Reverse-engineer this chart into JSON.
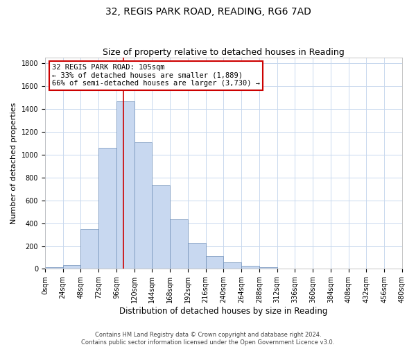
{
  "title": "32, REGIS PARK ROAD, READING, RG6 7AD",
  "subtitle": "Size of property relative to detached houses in Reading",
  "xlabel": "Distribution of detached houses by size in Reading",
  "ylabel": "Number of detached properties",
  "footer_line1": "Contains HM Land Registry data © Crown copyright and database right 2024.",
  "footer_line2": "Contains public sector information licensed under the Open Government Licence v3.0.",
  "bin_edges": [
    0,
    24,
    48,
    72,
    96,
    120,
    144,
    168,
    192,
    216,
    240,
    264,
    288,
    312,
    336,
    360,
    384,
    408,
    432,
    456,
    480
  ],
  "bin_counts": [
    15,
    35,
    350,
    1060,
    1470,
    1110,
    735,
    435,
    225,
    110,
    55,
    30,
    15,
    5,
    2,
    1,
    0,
    0,
    0,
    0
  ],
  "bar_color": "#c8d8f0",
  "bar_edge_color": "#7090b8",
  "property_line_x": 105,
  "property_line_color": "#cc0000",
  "annotation_line1": "32 REGIS PARK ROAD: 105sqm",
  "annotation_line2": "← 33% of detached houses are smaller (1,889)",
  "annotation_line3": "66% of semi-detached houses are larger (3,730) →",
  "annotation_box_color": "#ffffff",
  "annotation_box_edge_color": "#cc0000",
  "ylim": [
    0,
    1850
  ],
  "yticks": [
    0,
    200,
    400,
    600,
    800,
    1000,
    1200,
    1400,
    1600,
    1800
  ],
  "xtick_labels": [
    "0sqm",
    "24sqm",
    "48sqm",
    "72sqm",
    "96sqm",
    "120sqm",
    "144sqm",
    "168sqm",
    "192sqm",
    "216sqm",
    "240sqm",
    "264sqm",
    "288sqm",
    "312sqm",
    "336sqm",
    "360sqm",
    "384sqm",
    "408sqm",
    "432sqm",
    "456sqm",
    "480sqm"
  ],
  "background_color": "#ffffff",
  "grid_color": "#c8d8ee",
  "title_fontsize": 10,
  "subtitle_fontsize": 9,
  "xlabel_fontsize": 8.5,
  "ylabel_fontsize": 8,
  "tick_fontsize": 7,
  "annotation_fontsize": 7.5,
  "footer_fontsize": 6
}
